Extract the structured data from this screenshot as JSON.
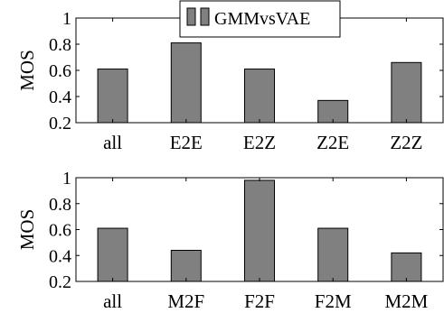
{
  "chart_data": [
    {
      "type": "bar",
      "categories": [
        "all",
        "E2E",
        "E2Z",
        "Z2E",
        "Z2Z"
      ],
      "series": [
        {
          "name": "GMMvsVAE",
          "values": [
            0.61,
            0.81,
            0.61,
            0.37,
            0.66
          ]
        }
      ],
      "ylabel": "MOS",
      "ylim": [
        0.2,
        1.0
      ],
      "yticks": [
        "0.2",
        "0.4",
        "0.6",
        "0.8",
        "1"
      ],
      "grid": false,
      "legend_placement": "top-center"
    },
    {
      "type": "bar",
      "categories": [
        "all",
        "M2F",
        "F2F",
        "F2M",
        "M2M"
      ],
      "series": [
        {
          "name": "GMMvsVAE",
          "values": [
            0.61,
            0.44,
            0.98,
            0.61,
            0.42
          ]
        }
      ],
      "ylabel": "MOS",
      "ylim": [
        0.2,
        1.0
      ],
      "yticks": [
        "0.2",
        "0.4",
        "0.6",
        "0.8",
        "1"
      ],
      "grid": false
    }
  ],
  "colors": {
    "bar_fill": "#808080",
    "bar_stroke": "#000000",
    "axis": "#000000"
  }
}
